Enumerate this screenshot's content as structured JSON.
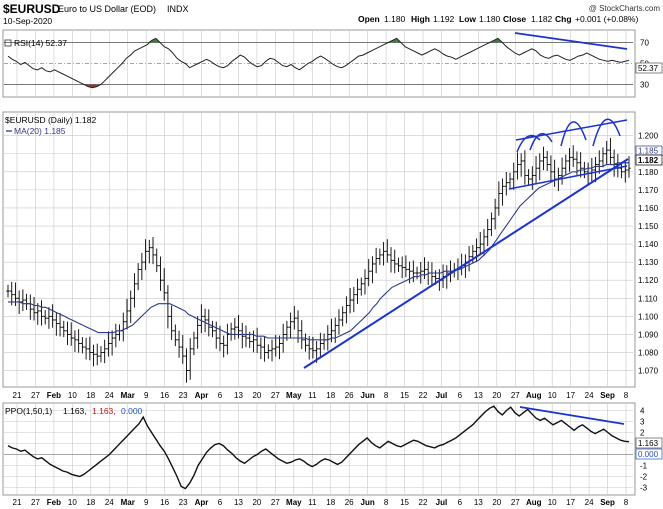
{
  "header": {
    "symbol": "$EURUSD",
    "title": "Euro to US Dollar (EOD)",
    "exchange": "INDX",
    "date": "10-Sep-2020",
    "watermark": "@ StockCharts.com",
    "quote": {
      "open_label": "Open",
      "open": "1.180",
      "high_label": "High",
      "high": "1.192",
      "low_label": "Low",
      "low": "1.180",
      "close_label": "Close",
      "close": "1.182",
      "chg_label": "Chg",
      "chg": "+0.001 (+0.08%)"
    }
  },
  "colors": {
    "price": "#000000",
    "ma": "#2f3a8f",
    "trend": "#1a33d6",
    "rsi_over": "#3c7a3c",
    "rsi_under": "#8b3c3c",
    "grid": "#c8c8c8",
    "ppo_signal": "#d01010",
    "ppo_hist": "#2050d0"
  },
  "rsi_panel": {
    "label": "RSI(14) 52.37",
    "last_badge": "52.37",
    "levels": [
      "70",
      "50",
      "30"
    ]
  },
  "price_panel": {
    "legend_series": "$EURUSD (Daily) 1.182",
    "legend_ma": "MA(20) 1.185",
    "badge_ma": "1.185",
    "badge_close": "1.182"
  },
  "ppo_panel": {
    "label_prefix": "PPO(1,50,1)",
    "label_value": "1.163,",
    "label_signal": "1.163,",
    "label_hist": "0.000",
    "badge_value": "1.163",
    "badge_hist": "0.000",
    "ticks": [
      "4",
      "3",
      "2",
      "1",
      "0",
      "-1",
      "-2",
      "-3"
    ]
  },
  "chart_data": {
    "type": "line",
    "title": "Euro to US Dollar (EOD)",
    "xlabel": "",
    "ylabel": "",
    "grid": true,
    "x_ticks": [
      "21",
      "27",
      "Feb",
      "10",
      "18",
      "24",
      "Mar",
      "9",
      "16",
      "23",
      "Apr",
      "6",
      "13",
      "20",
      "27",
      "May",
      "11",
      "18",
      "26",
      "Jun",
      "8",
      "15",
      "22",
      "Jul",
      "6",
      "13",
      "20",
      "27",
      "Aug",
      "10",
      "17",
      "24",
      "Sep",
      "8"
    ],
    "price_axis": {
      "ylim": [
        1.062,
        1.212
      ],
      "ticks": [
        "1.070",
        "1.080",
        "1.090",
        "1.100",
        "1.110",
        "1.120",
        "1.130",
        "1.140",
        "1.150",
        "1.160",
        "1.170",
        "1.180",
        "1.190",
        "1.200"
      ]
    },
    "series": [
      {
        "name": "$EURUSD (Daily)",
        "kind": "ohlc_close",
        "values": [
          1.114,
          1.112,
          1.11,
          1.108,
          1.109,
          1.107,
          1.104,
          1.102,
          1.103,
          1.1,
          1.099,
          1.1,
          1.098,
          1.096,
          1.094,
          1.092,
          1.09,
          1.088,
          1.087,
          1.085,
          1.083,
          1.082,
          1.08,
          1.079,
          1.078,
          1.08,
          1.082,
          1.085,
          1.088,
          1.09,
          1.092,
          1.097,
          1.103,
          1.11,
          1.118,
          1.126,
          1.13,
          1.136,
          1.138,
          1.134,
          1.128,
          1.12,
          1.113,
          1.1,
          1.092,
          1.087,
          1.083,
          1.078,
          1.07,
          1.082,
          1.088,
          1.095,
          1.1,
          1.098,
          1.094,
          1.092,
          1.088,
          1.085,
          1.084,
          1.09,
          1.093,
          1.094,
          1.092,
          1.089,
          1.088,
          1.086,
          1.087,
          1.084,
          1.083,
          1.08,
          1.081,
          1.082,
          1.083,
          1.085,
          1.09,
          1.094,
          1.097,
          1.099,
          1.092,
          1.087,
          1.084,
          1.082,
          1.081,
          1.082,
          1.085,
          1.087,
          1.09,
          1.092,
          1.095,
          1.098,
          1.102,
          1.106,
          1.109,
          1.112,
          1.115,
          1.118,
          1.121,
          1.125,
          1.129,
          1.132,
          1.134,
          1.136,
          1.134,
          1.131,
          1.129,
          1.128,
          1.127,
          1.126,
          1.125,
          1.124,
          1.124,
          1.125,
          1.126,
          1.124,
          1.122,
          1.121,
          1.12,
          1.122,
          1.124,
          1.125,
          1.126,
          1.127,
          1.128,
          1.13,
          1.133,
          1.136,
          1.138,
          1.14,
          1.144,
          1.148,
          1.154,
          1.16,
          1.168,
          1.172,
          1.174,
          1.176,
          1.18,
          1.184,
          1.186,
          1.178,
          1.176,
          1.178,
          1.182,
          1.186,
          1.188,
          1.184,
          1.18,
          1.176,
          1.178,
          1.182,
          1.186,
          1.188,
          1.187,
          1.185,
          1.182,
          1.18,
          1.179,
          1.181,
          1.184,
          1.186,
          1.19,
          1.192,
          1.188,
          1.184,
          1.182,
          1.18,
          1.181,
          1.182
        ]
      },
      {
        "name": "MA(20)",
        "kind": "line",
        "values": [
          1.108,
          1.108,
          1.108,
          1.108,
          1.107,
          1.107,
          1.107,
          1.106,
          1.106,
          1.105,
          1.105,
          1.104,
          1.103,
          1.102,
          1.101,
          1.1,
          1.099,
          1.098,
          1.097,
          1.096,
          1.095,
          1.094,
          1.093,
          1.092,
          1.091,
          1.091,
          1.091,
          1.091,
          1.091,
          1.092,
          1.092,
          1.093,
          1.094,
          1.095,
          1.097,
          1.099,
          1.101,
          1.103,
          1.105,
          1.106,
          1.107,
          1.107,
          1.107,
          1.107,
          1.106,
          1.105,
          1.104,
          1.103,
          1.101,
          1.1,
          1.099,
          1.098,
          1.097,
          1.096,
          1.095,
          1.094,
          1.093,
          1.092,
          1.091,
          1.09,
          1.09,
          1.09,
          1.09,
          1.09,
          1.09,
          1.09,
          1.089,
          1.089,
          1.089,
          1.088,
          1.088,
          1.088,
          1.088,
          1.088,
          1.088,
          1.088,
          1.088,
          1.088,
          1.088,
          1.088,
          1.087,
          1.087,
          1.087,
          1.087,
          1.087,
          1.087,
          1.088,
          1.088,
          1.089,
          1.09,
          1.091,
          1.092,
          1.094,
          1.096,
          1.098,
          1.1,
          1.102,
          1.105,
          1.107,
          1.11,
          1.112,
          1.114,
          1.116,
          1.117,
          1.118,
          1.119,
          1.12,
          1.121,
          1.122,
          1.122,
          1.123,
          1.123,
          1.124,
          1.124,
          1.124,
          1.124,
          1.125,
          1.125,
          1.125,
          1.126,
          1.126,
          1.127,
          1.128,
          1.129,
          1.13,
          1.131,
          1.133,
          1.135,
          1.137,
          1.14,
          1.143,
          1.146,
          1.149,
          1.152,
          1.155,
          1.158,
          1.161,
          1.163,
          1.165,
          1.167,
          1.169,
          1.171,
          1.172,
          1.173,
          1.174,
          1.175,
          1.176,
          1.177,
          1.178,
          1.179,
          1.18,
          1.18,
          1.181,
          1.181,
          1.182,
          1.182,
          1.183,
          1.183,
          1.183,
          1.184,
          1.184,
          1.184,
          1.185,
          1.185,
          1.185,
          1.185
        ]
      },
      {
        "name": "RSI(14)",
        "kind": "indicator",
        "ylim": [
          20,
          80
        ],
        "values": [
          57,
          54,
          52,
          49,
          51,
          48,
          45,
          44,
          46,
          43,
          42,
          44,
          42,
          40,
          38,
          36,
          34,
          32,
          30,
          28,
          27,
          28,
          30,
          34,
          38,
          42,
          46,
          50,
          55,
          58,
          62,
          64,
          66,
          68,
          72,
          74,
          70,
          66,
          64,
          60,
          55,
          52,
          50,
          46,
          48,
          50,
          52,
          54,
          52,
          49,
          47,
          46,
          48,
          52,
          55,
          58,
          56,
          52,
          49,
          47,
          48,
          52,
          55,
          54,
          51,
          48,
          47,
          49,
          46,
          44,
          47,
          50,
          52,
          55,
          57,
          55,
          52,
          49,
          47,
          46,
          48,
          51,
          54,
          57,
          58,
          60,
          62,
          64,
          66,
          68,
          70,
          72,
          74,
          70,
          66,
          64,
          62,
          60,
          58,
          60,
          62,
          64,
          62,
          59,
          57,
          56,
          54,
          56,
          58,
          60,
          62,
          64,
          66,
          68,
          70,
          72,
          74,
          70,
          66,
          63,
          60,
          58,
          60,
          62,
          64,
          62,
          58,
          56,
          55,
          57,
          58,
          56,
          54,
          53,
          55,
          57,
          58,
          60,
          58,
          56,
          54,
          53,
          52,
          53,
          52,
          51,
          52,
          53
        ]
      },
      {
        "name": "PPO(1,50,1)",
        "kind": "indicator",
        "ylim": [
          -3.5,
          4.5
        ],
        "values": [
          0.8,
          0.6,
          0.5,
          0.3,
          0.4,
          0.1,
          -0.2,
          -0.4,
          -0.3,
          -0.6,
          -0.9,
          -1.1,
          -1.3,
          -1.5,
          -1.6,
          -1.8,
          -1.9,
          -2.0,
          -1.8,
          -1.5,
          -1.2,
          -0.9,
          -0.6,
          -0.3,
          0.0,
          0.4,
          0.8,
          1.2,
          1.6,
          2.0,
          2.4,
          2.8,
          3.4,
          2.6,
          2.0,
          1.4,
          0.8,
          0.3,
          -0.4,
          -1.2,
          -2.0,
          -2.9,
          -3.1,
          -2.6,
          -1.9,
          -1.0,
          -0.4,
          0.2,
          0.6,
          0.9,
          1.0,
          0.8,
          0.4,
          0.1,
          -0.3,
          -0.6,
          -0.8,
          -0.5,
          -0.2,
          0.0,
          0.3,
          0.5,
          0.2,
          -0.1,
          -0.4,
          -0.6,
          -0.8,
          -0.7,
          -0.5,
          -0.4,
          -0.6,
          -0.9,
          -1.1,
          -0.9,
          -0.6,
          -0.4,
          -0.5,
          -0.7,
          -0.9,
          -0.7,
          -0.3,
          0.1,
          0.5,
          0.9,
          1.2,
          1.5,
          1.1,
          0.8,
          0.6,
          0.9,
          1.2,
          1.0,
          0.8,
          0.7,
          0.9,
          1.1,
          1.3,
          1.2,
          1.0,
          0.8,
          0.7,
          0.6,
          0.8,
          0.9,
          1.1,
          1.3,
          1.5,
          1.8,
          2.1,
          2.4,
          2.7,
          3.1,
          3.5,
          3.9,
          4.2,
          4.4,
          3.9,
          3.6,
          4.0,
          4.3,
          3.8,
          3.5,
          3.8,
          4.1,
          3.7,
          3.3,
          3.1,
          3.3,
          3.0,
          2.7,
          2.9,
          3.1,
          2.8,
          2.5,
          2.2,
          2.5,
          2.7,
          2.4,
          2.1,
          1.9,
          2.1,
          2.3,
          2.0,
          1.7,
          1.5,
          1.3,
          1.2,
          1.163
        ]
      }
    ]
  }
}
